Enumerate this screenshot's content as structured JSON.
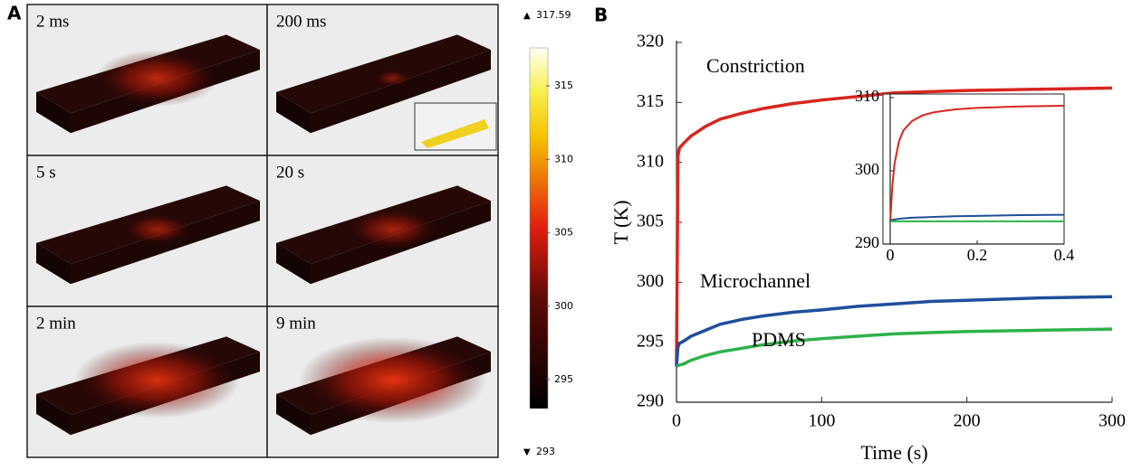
{
  "panel_a": {
    "label": "A",
    "frames": [
      "2 ms",
      "200 ms",
      "5 s",
      "20 s",
      "2 min",
      "9 min"
    ],
    "colorbar": {
      "range": [
        293,
        317.59
      ],
      "ticks": [
        295,
        300,
        305,
        310,
        315
      ]
    }
  },
  "panel_b": {
    "label": "B"
  },
  "chart_data": [
    {
      "type": "line",
      "x_label": "Time (s)",
      "y_label": "T (K)",
      "x": [
        0,
        1,
        2,
        5,
        10,
        20,
        30,
        45,
        60,
        80,
        100,
        125,
        150,
        175,
        200,
        250,
        300
      ],
      "series": [
        {
          "name": "Constriction",
          "color": "#d7261e",
          "values": [
            293,
            310.5,
            311.2,
            311.6,
            312.2,
            313,
            313.6,
            314.1,
            314.5,
            314.9,
            315.2,
            315.5,
            315.8,
            315.9,
            316,
            316.1,
            316.2
          ]
        },
        {
          "name": "Microchannel",
          "color": "#1f4e9c",
          "values": [
            293,
            294.6,
            294.9,
            295.1,
            295.5,
            296,
            296.5,
            296.9,
            297.2,
            297.5,
            297.7,
            298,
            298.2,
            298.4,
            298.5,
            298.7,
            298.8
          ]
        },
        {
          "name": "PDMS",
          "color": "#2db34a",
          "values": [
            293,
            293.05,
            293.1,
            293.2,
            293.5,
            293.9,
            294.2,
            294.5,
            294.8,
            295.1,
            295.3,
            295.5,
            295.7,
            295.8,
            295.9,
            296,
            296.1
          ]
        }
      ],
      "xlim": [
        0,
        300
      ],
      "ylim": [
        290,
        320
      ],
      "xticks": [
        0,
        100,
        200,
        300
      ],
      "yticks": [
        290,
        295,
        300,
        305,
        310,
        315,
        320
      ]
    },
    {
      "type": "line",
      "x": [
        0,
        0.005,
        0.01,
        0.02,
        0.03,
        0.05,
        0.075,
        0.1,
        0.15,
        0.2,
        0.3,
        0.4
      ],
      "series": [
        {
          "color": "#d7261e",
          "values": [
            293,
            298,
            301,
            304,
            305.5,
            306.8,
            307.6,
            308,
            308.4,
            308.6,
            308.8,
            308.9
          ]
        },
        {
          "color": "#1f4e9c",
          "values": [
            293.2,
            293.3,
            293.35,
            293.45,
            293.5,
            293.6,
            293.65,
            293.7,
            293.8,
            293.85,
            293.95,
            294
          ]
        },
        {
          "color": "#2db34a",
          "values": [
            293.1,
            293.1,
            293.1,
            293.1,
            293.1,
            293.1,
            293.1,
            293.1,
            293.1,
            293.1,
            293.1,
            293.1
          ]
        }
      ],
      "xlim": [
        0,
        0.4
      ],
      "ylim": [
        290,
        310.5
      ],
      "xticks": [
        0,
        0.2,
        0.4
      ],
      "yticks": [
        290,
        300,
        310
      ]
    }
  ]
}
